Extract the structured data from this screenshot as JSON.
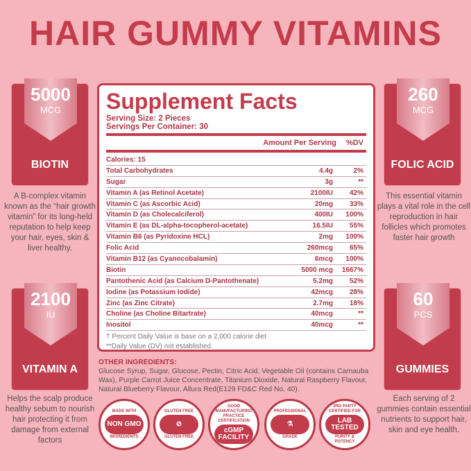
{
  "title": "HAIR GUMMY VITAMINS",
  "colors": {
    "background": "#f6b4bc",
    "accent": "#c33c4c"
  },
  "cards": [
    {
      "value": "5000",
      "unit": "MCG",
      "name": "BIOTIN",
      "desc": "A B-complex vitamin known as the “hair growth vitamin” for its long-held reputation to help keep your hair, eyes, skin & liver healthy."
    },
    {
      "value": "2100",
      "unit": "IU",
      "name": "VITAMIN A",
      "desc": "Helps the scalp produce healthy sebum to nourish hair protecting it from damage from external factors"
    },
    {
      "value": "260",
      "unit": "MCG",
      "name": "FOLIC ACID",
      "desc": "This essential vitamin plays a vital role in the cell reproduction in hair follicles which promotes faster hair growth"
    },
    {
      "value": "60",
      "unit": "PCS",
      "name": "GUMMIES",
      "desc": "Each serving of 2 gummies contain essential nutrients to support hair, skin and eye health."
    }
  ],
  "facts": {
    "heading": "Supplement Facts",
    "serving_size": "Serving Size: 2 Pieces",
    "servings_per_container": "Servings Per Container: 30",
    "col_amount": "Amount Per Serving",
    "col_dv": "%DV",
    "rows": [
      [
        "Calories: 15",
        "",
        ""
      ],
      [
        "Total Carbohydrates",
        "4.4g",
        "2%"
      ],
      [
        "Sugar",
        "3g",
        "**"
      ],
      [
        "Vitamin A (as Retinol Acetate)",
        "2100IU",
        "42%"
      ],
      [
        "Vitamin C (as Ascorbic Acid)",
        "20mg",
        "33%"
      ],
      [
        "Vitamin D (as Cholecalciferol)",
        "400IU",
        "100%"
      ],
      [
        "Vitamin E (as DL-alpha-tocopherol-acetate)",
        "16.5IU",
        "55%"
      ],
      [
        "Vitamin B6 (as Pyridoxine HCL)",
        "2mg",
        "100%"
      ],
      [
        "Folic Acid",
        "260mcg",
        "65%"
      ],
      [
        "Vitamin B12 (as Cyanocobalamin)",
        "6mcg",
        "100%"
      ],
      [
        "Biotin",
        "5000 mcg",
        "1667%"
      ],
      [
        "Pantothenic Acid (as Calcium D-Pantothenate)",
        "5.2mg",
        "52%"
      ],
      [
        "Iodine (as Potassium Iodide)",
        "42mcg",
        "28%"
      ],
      [
        "Zinc (as Zinc Citrate)",
        "2.7mg",
        "18%"
      ],
      [
        "Choline (as Choline Bitartrate)",
        "40mcg",
        "**"
      ],
      [
        "Inositol",
        "40mcg",
        "**"
      ]
    ],
    "footnote1": "† Percent Daily Value is base on a 2,000 calorie diet",
    "footnote2": "**Daily Value (DV) not established."
  },
  "other": {
    "label": "OTHER INGREDIENTS:",
    "text": "Glucose Syrup, Sugar, Glucose, Pectin, Citric Acid, Vegetable Oil (contains Carnauba Wax), Purple Carrot Juice Concentrate, Titanium Dioxide, Natural Raspberry Flavour, Natural Blueberry Flavour, Allura Red(E129 FD&C Red No. 40)."
  },
  "badges": [
    {
      "top": "MADE WITH",
      "center": "NON GMO",
      "bottom": "INGREDIENTS"
    },
    {
      "top": "GLUTEN FREE",
      "center": "⊘",
      "bottom": "GLUTEN FREE"
    },
    {
      "top": "GOOD MANUFACTURING PRACTICE CERTIFICATION",
      "center": "cGMP FACILITY",
      "bottom": ""
    },
    {
      "top": "PROFESSIONAL",
      "center": "⚗",
      "bottom": "GRADE"
    },
    {
      "top": "3RD PARTY CERTIFIED FOR",
      "center": "LAB TESTED",
      "bottom": "PURITY & POTENCY"
    }
  ]
}
